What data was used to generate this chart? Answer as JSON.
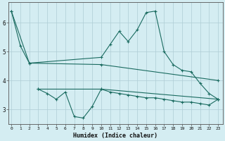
{
  "xlabel": "Humidex (Indice chaleur)",
  "background_color": "#d4edf2",
  "line_color": "#1a6b60",
  "grid_color": "#aecdd5",
  "x_ticks": [
    0,
    1,
    2,
    3,
    4,
    5,
    6,
    7,
    8,
    9,
    10,
    11,
    12,
    13,
    14,
    15,
    16,
    17,
    18,
    19,
    20,
    21,
    22,
    23
  ],
  "ylim": [
    2.5,
    6.7
  ],
  "xlim": [
    -0.3,
    23.5
  ],
  "line1_x": [
    0,
    1,
    2,
    10,
    11,
    12,
    13,
    14,
    15,
    16,
    17,
    18,
    19,
    20,
    21,
    22,
    23
  ],
  "line1_y": [
    6.4,
    5.2,
    4.6,
    4.8,
    5.25,
    5.7,
    5.35,
    5.75,
    6.35,
    6.4,
    5.0,
    4.55,
    4.35,
    4.3,
    3.9,
    3.55,
    3.35
  ],
  "line2_x": [
    0,
    2,
    10,
    23
  ],
  "line2_y": [
    6.4,
    4.6,
    4.55,
    4.0
  ],
  "line3_x": [
    3,
    4,
    5,
    6,
    7,
    8,
    9,
    10,
    11,
    12,
    13,
    14,
    15,
    16,
    17,
    18,
    19,
    20,
    21,
    22,
    23
  ],
  "line3_y": [
    3.7,
    3.55,
    3.35,
    3.6,
    2.75,
    2.7,
    3.1,
    3.7,
    3.6,
    3.55,
    3.5,
    3.45,
    3.4,
    3.4,
    3.35,
    3.3,
    3.25,
    3.25,
    3.2,
    3.15,
    3.35
  ],
  "line4_x": [
    3,
    10,
    23
  ],
  "line4_y": [
    3.7,
    3.7,
    3.35
  ]
}
